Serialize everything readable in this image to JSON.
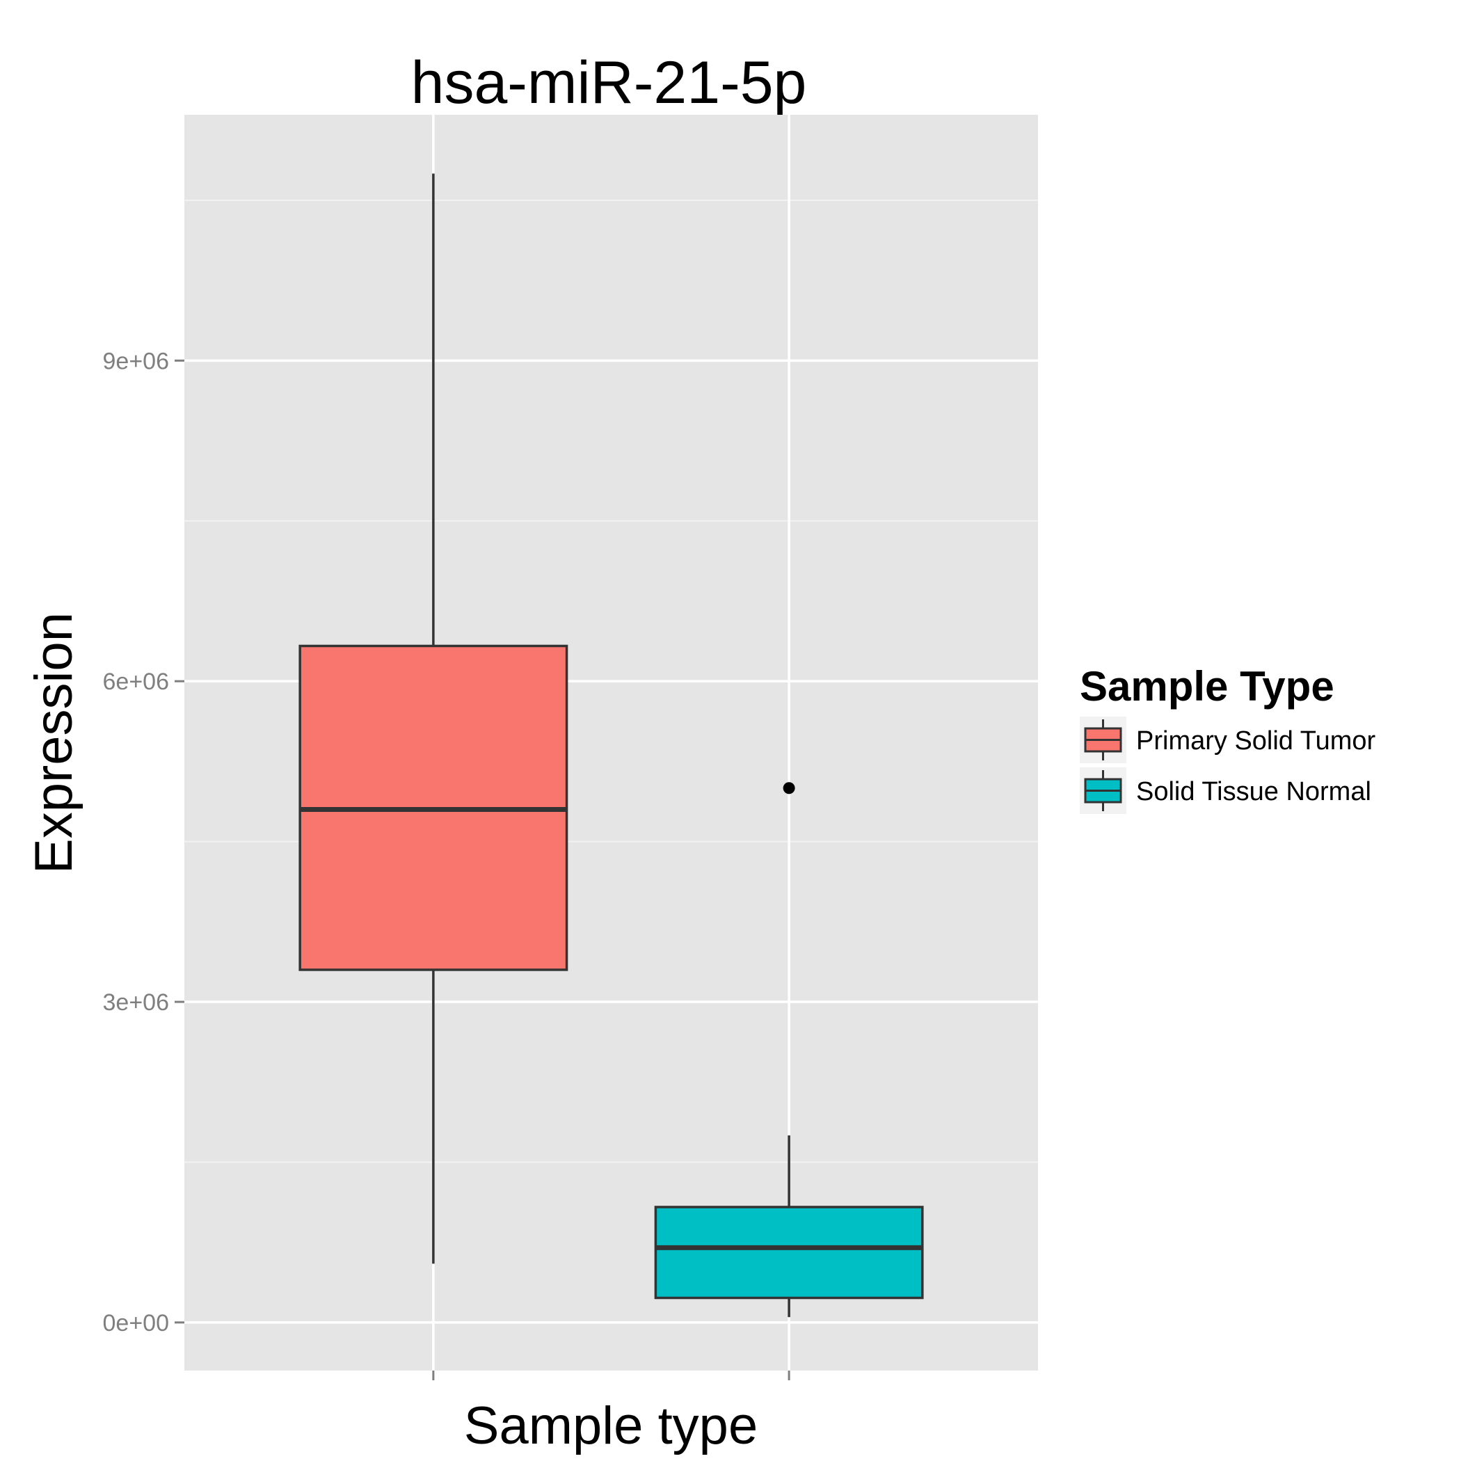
{
  "chart_data": {
    "type": "box",
    "title": "hsa-miR-21-5p",
    "xlabel": "Sample type",
    "ylabel": "Expression",
    "ylim": [
      -450000,
      11300000
    ],
    "yticks": [
      0,
      3000000,
      6000000,
      9000000
    ],
    "ytick_labels": [
      "0e+00",
      "3e+06",
      "6e+06",
      "9e+06"
    ],
    "minor_y": [
      1500000,
      4500000,
      7500000,
      10500000
    ],
    "grid": true,
    "panel_background": "#e5e5e5",
    "legend": {
      "title": "Sample Type",
      "position": "right",
      "entries": [
        "Primary Solid Tumor",
        "Solid Tissue Normal"
      ]
    },
    "series": [
      {
        "name": "Primary Solid Tumor",
        "color": "#f8766d",
        "whisker_low": 550000,
        "q1": 3300000,
        "median": 4800000,
        "q3": 6330000,
        "whisker_high": 10750000,
        "outliers": []
      },
      {
        "name": "Solid Tissue Normal",
        "color": "#00bfc4",
        "whisker_low": 50000,
        "q1": 230000,
        "median": 700000,
        "q3": 1080000,
        "whisker_high": 1750000,
        "outliers": [
          5000000
        ]
      }
    ]
  }
}
